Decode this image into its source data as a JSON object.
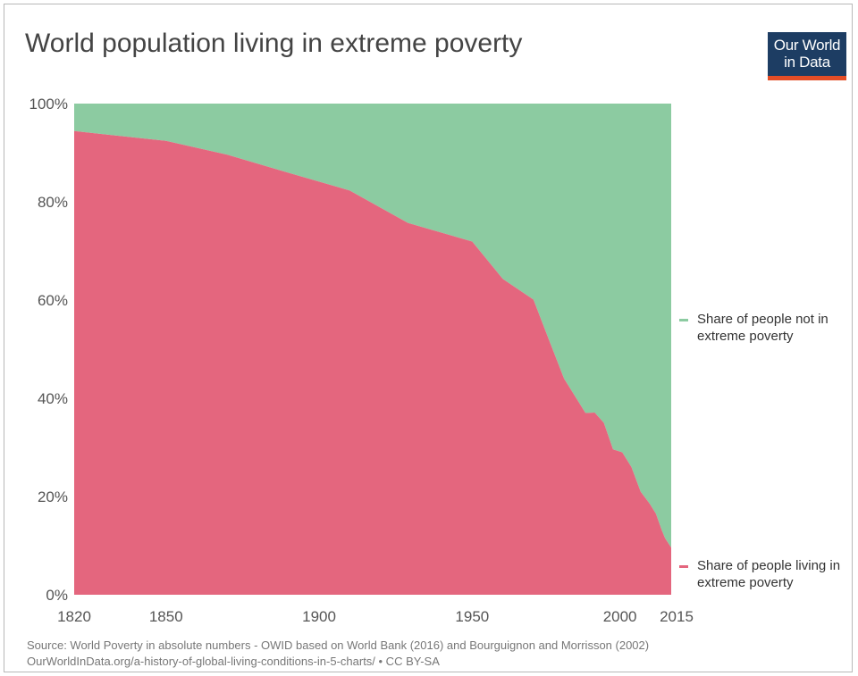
{
  "title": "World population living in extreme poverty",
  "logo": {
    "line1": "Our World",
    "line2": "in Data"
  },
  "legend": {
    "not_poor": "Share of people not in extreme poverty",
    "poor": "Share of people living in extreme poverty"
  },
  "source": {
    "line1": "Source: World Poverty in absolute numbers - OWID based on World Bank (2016) and Bourguignon and Morrisson (2002)",
    "line2": "OurWorldInData.org/a-history-of-global-living-conditions-in-5-charts/ • CC BY-SA"
  },
  "colors": {
    "not_poor": "#8ccba1",
    "poor": "#e4667e",
    "logo_bg": "#1d3d63",
    "logo_bar": "#e44d26"
  },
  "chart_data": {
    "type": "area",
    "stacked": true,
    "title": "World population living in extreme poverty",
    "xlim": [
      1820,
      2015
    ],
    "ylim": [
      0,
      100
    ],
    "x_ticks": [
      1820,
      1850,
      1900,
      1950,
      2000,
      2015
    ],
    "y_ticks": [
      0,
      20,
      40,
      60,
      80,
      100
    ],
    "y_tick_labels": [
      "0%",
      "20%",
      "40%",
      "60%",
      "80%",
      "100%"
    ],
    "legend_position": "right",
    "grid": false,
    "x": [
      1820,
      1850,
      1870,
      1890,
      1910,
      1929,
      1950,
      1960,
      1970,
      1975,
      1980,
      1985,
      1987,
      1990,
      1993,
      1996,
      1999,
      2002,
      2005,
      2008,
      2010,
      2012,
      2013,
      2015
    ],
    "series": [
      {
        "name": "Share of people living in extreme poverty",
        "color": "#e4667e",
        "values": [
          94.4,
          92.4,
          89.6,
          85.9,
          82.3,
          75.7,
          71.9,
          64.3,
          60.1,
          52.0,
          44.0,
          39.0,
          37.0,
          37.1,
          35.0,
          29.6,
          29.0,
          26.0,
          21.0,
          18.5,
          16.5,
          13.0,
          11.5,
          9.6
        ]
      },
      {
        "name": "Share of people not in extreme poverty",
        "color": "#8ccba1",
        "values": [
          5.6,
          7.6,
          10.4,
          14.1,
          17.7,
          24.3,
          28.1,
          35.7,
          39.9,
          48.0,
          56.0,
          61.0,
          63.0,
          62.9,
          65.0,
          70.4,
          71.0,
          74.0,
          79.0,
          81.5,
          83.5,
          87.0,
          88.5,
          90.4
        ]
      }
    ]
  }
}
